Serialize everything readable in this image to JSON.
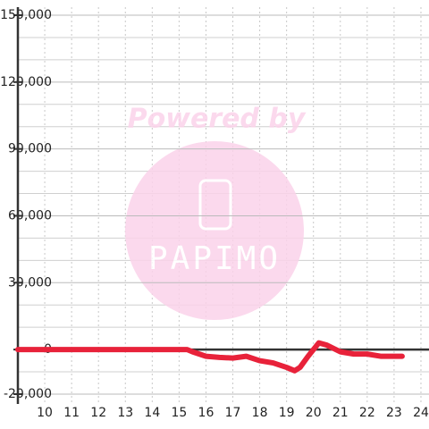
{
  "chart_data": {
    "type": "line",
    "annotations": [
      "Powered by",
      "PAPIMO"
    ],
    "x": [
      9,
      15.3,
      15.5,
      16,
      16.5,
      17,
      17.5,
      18,
      18.5,
      19,
      19.3,
      19.5,
      19.8,
      20,
      20.2,
      20.5,
      21,
      21.5,
      22,
      22.5,
      23.3
    ],
    "series": [
      {
        "name": "value",
        "color": "#e8223a",
        "values": [
          0,
          0,
          -1000,
          -3000,
          -3500,
          -3800,
          -3000,
          -5000,
          -6000,
          -8000,
          -9500,
          -8000,
          -3000,
          0,
          3000,
          2000,
          -1000,
          -2000,
          -2000,
          -3000,
          -3000
        ]
      }
    ],
    "xlim": [
      9,
      24.3
    ],
    "xticks": [
      10,
      11,
      12,
      13,
      14,
      15,
      16,
      17,
      18,
      19,
      20,
      21,
      22,
      23,
      24
    ],
    "ylim": [
      -20000,
      150000
    ],
    "yticks": [
      {
        "value": -20000,
        "label": "-20,000"
      },
      0,
      {
        "value": 30000,
        "label": "30,000"
      },
      {
        "value": 60000,
        "label": "60,000"
      },
      {
        "value": 90000,
        "label": "90,000"
      },
      {
        "value": 120000,
        "label": "120,000"
      },
      {
        "value": 150000,
        "label": "150,000"
      }
    ],
    "yminor": [
      -10000,
      10000,
      20000,
      40000,
      50000,
      70000,
      80000,
      100000,
      110000,
      130000,
      140000
    ],
    "grid": true
  }
}
